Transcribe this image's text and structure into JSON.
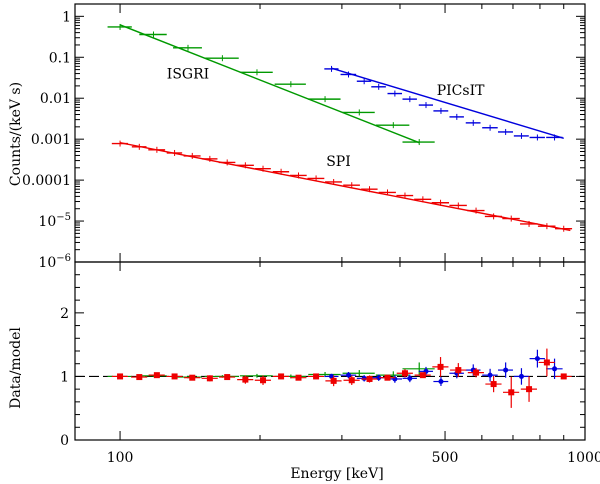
{
  "chart_data": [
    {
      "type": "line",
      "panel": "spectrum",
      "ylabel": "Counts/(keV s)",
      "xscale": "log",
      "yscale": "log",
      "xlim": [
        80,
        1000
      ],
      "ylim": [
        1e-06,
        2
      ],
      "y_ticks": [
        {
          "value": 1,
          "label": "1"
        },
        {
          "value": 0.1,
          "label": "0.1"
        },
        {
          "value": 0.01,
          "label": "0.01"
        },
        {
          "value": 0.001,
          "label": "0.001"
        },
        {
          "value": 0.0001,
          "label": "0.0001"
        },
        {
          "value": 1e-05,
          "label": "10",
          "exp": "−5"
        },
        {
          "value": 1e-06,
          "label": "10",
          "exp": "−6"
        }
      ],
      "series": [
        {
          "name": "ISGRI",
          "color": "#009900",
          "x": [
            100,
            118,
            140,
            166,
            197,
            233,
            276,
            327,
            387,
            440
          ],
          "y": [
            0.55,
            0.36,
            0.17,
            0.095,
            0.043,
            0.022,
            0.0095,
            0.0045,
            0.0022,
            0.00085
          ],
          "xerr": [
            6,
            8,
            10,
            14,
            16,
            18,
            22,
            26,
            32,
            35
          ],
          "model_x": [
            100,
            440
          ],
          "model_y": [
            0.62,
            0.00082
          ]
        },
        {
          "name": "PICsIT",
          "color": "#0000dd",
          "x": [
            285,
            310,
            335,
            360,
            390,
            420,
            455,
            490,
            530,
            575,
            625,
            675,
            730,
            790,
            860
          ],
          "y": [
            0.052,
            0.038,
            0.026,
            0.019,
            0.013,
            0.0095,
            0.0068,
            0.0049,
            0.0035,
            0.0025,
            0.0019,
            0.0015,
            0.0012,
            0.0011,
            0.0011
          ],
          "xerr": [
            10,
            12,
            12,
            13,
            14,
            15,
            16,
            18,
            19,
            21,
            24,
            25,
            27,
            30,
            35
          ],
          "model_x": [
            285,
            900
          ],
          "model_y": [
            0.054,
            0.00105
          ]
        },
        {
          "name": "SPI",
          "color": "#ee0000",
          "x": [
            100,
            110,
            120,
            131,
            143,
            156,
            170,
            186,
            203,
            222,
            242,
            264,
            288,
            315,
            344,
            376,
            410,
            448,
            489,
            534,
            583,
            636,
            694,
            758,
            828,
            900
          ],
          "y": [
            0.00078,
            0.00065,
            0.00055,
            0.00046,
            0.00039,
            0.00033,
            0.00027,
            0.00023,
            0.00019,
            0.00016,
            0.00013,
            0.00011,
            9e-05,
            7.5e-05,
            6e-05,
            5e-05,
            4.2e-05,
            3.4e-05,
            2.8e-05,
            2.4e-05,
            1.8e-05,
            1.3e-05,
            1.15e-05,
            8.5e-06,
            7.5e-06,
            6.5e-06
          ],
          "xerr": [
            4,
            4,
            5,
            5,
            6,
            6,
            7,
            8,
            8,
            9,
            10,
            11,
            12,
            13,
            14,
            16,
            17,
            19,
            21,
            23,
            25,
            27,
            30,
            33,
            36,
            38
          ],
          "model_x": [
            100,
            930
          ],
          "model_y": [
            0.00082,
            5.9e-06
          ]
        }
      ],
      "annotations": [
        {
          "text": "ISGRI",
          "x": 140,
          "y": 0.03
        },
        {
          "text": "PICsIT",
          "x": 540,
          "y": 0.012
        },
        {
          "text": "SPI",
          "x": 295,
          "y": 0.00022
        }
      ]
    },
    {
      "type": "scatter",
      "panel": "ratio",
      "xlabel": "Energy [keV]",
      "ylabel": "Data/model",
      "xscale": "log",
      "xlim": [
        80,
        1000
      ],
      "ylim": [
        0,
        2.8
      ],
      "x_ticks": [
        {
          "value": 100,
          "label": "100"
        },
        {
          "value": 500,
          "label": "500"
        },
        {
          "value": 1000,
          "label": "1000"
        }
      ],
      "y_ticks": [
        {
          "value": 0,
          "label": "0"
        },
        {
          "value": 1,
          "label": "1"
        },
        {
          "value": 2,
          "label": "2"
        }
      ],
      "reference_line": 1,
      "series": [
        {
          "name": "ISGRI",
          "color": "#009900",
          "x": [
            100,
            118,
            140,
            166,
            197,
            233,
            276,
            327,
            387,
            440
          ],
          "y": [
            1.0,
            1.01,
            0.99,
            1.0,
            1.01,
            1.0,
            1.03,
            1.05,
            1.02,
            1.12
          ],
          "yerr": [
            0.02,
            0.02,
            0.02,
            0.02,
            0.03,
            0.03,
            0.04,
            0.05,
            0.06,
            0.1
          ],
          "xerr": [
            6,
            8,
            10,
            14,
            16,
            18,
            22,
            26,
            32,
            35
          ]
        },
        {
          "name": "PICsIT",
          "color": "#0000dd",
          "x": [
            285,
            310,
            335,
            360,
            390,
            420,
            455,
            490,
            530,
            575,
            625,
            675,
            730,
            790,
            860
          ],
          "y": [
            1.0,
            1.02,
            0.97,
            0.98,
            0.96,
            0.97,
            1.08,
            0.92,
            1.05,
            1.1,
            1.02,
            1.1,
            1.0,
            1.28,
            1.12
          ],
          "yerr": [
            0.04,
            0.05,
            0.05,
            0.05,
            0.06,
            0.06,
            0.07,
            0.07,
            0.08,
            0.09,
            0.1,
            0.12,
            0.13,
            0.14,
            0.16
          ],
          "xerr": [
            10,
            12,
            12,
            13,
            14,
            15,
            16,
            18,
            19,
            21,
            24,
            25,
            27,
            30,
            35
          ]
        },
        {
          "name": "SPI",
          "color": "#ee0000",
          "x": [
            100,
            110,
            120,
            131,
            143,
            156,
            170,
            186,
            203,
            222,
            242,
            264,
            288,
            315,
            344,
            376,
            410,
            448,
            489,
            534,
            583,
            636,
            694,
            758,
            828,
            900
          ],
          "y": [
            1.0,
            0.99,
            1.02,
            1.0,
            0.98,
            0.97,
            0.99,
            0.95,
            0.94,
            1.0,
            0.98,
            1.0,
            0.93,
            0.94,
            0.96,
            0.98,
            1.05,
            1.02,
            1.15,
            1.1,
            1.06,
            0.88,
            0.75,
            0.8,
            1.22,
            1.0
          ]
        }
      ]
    }
  ]
}
